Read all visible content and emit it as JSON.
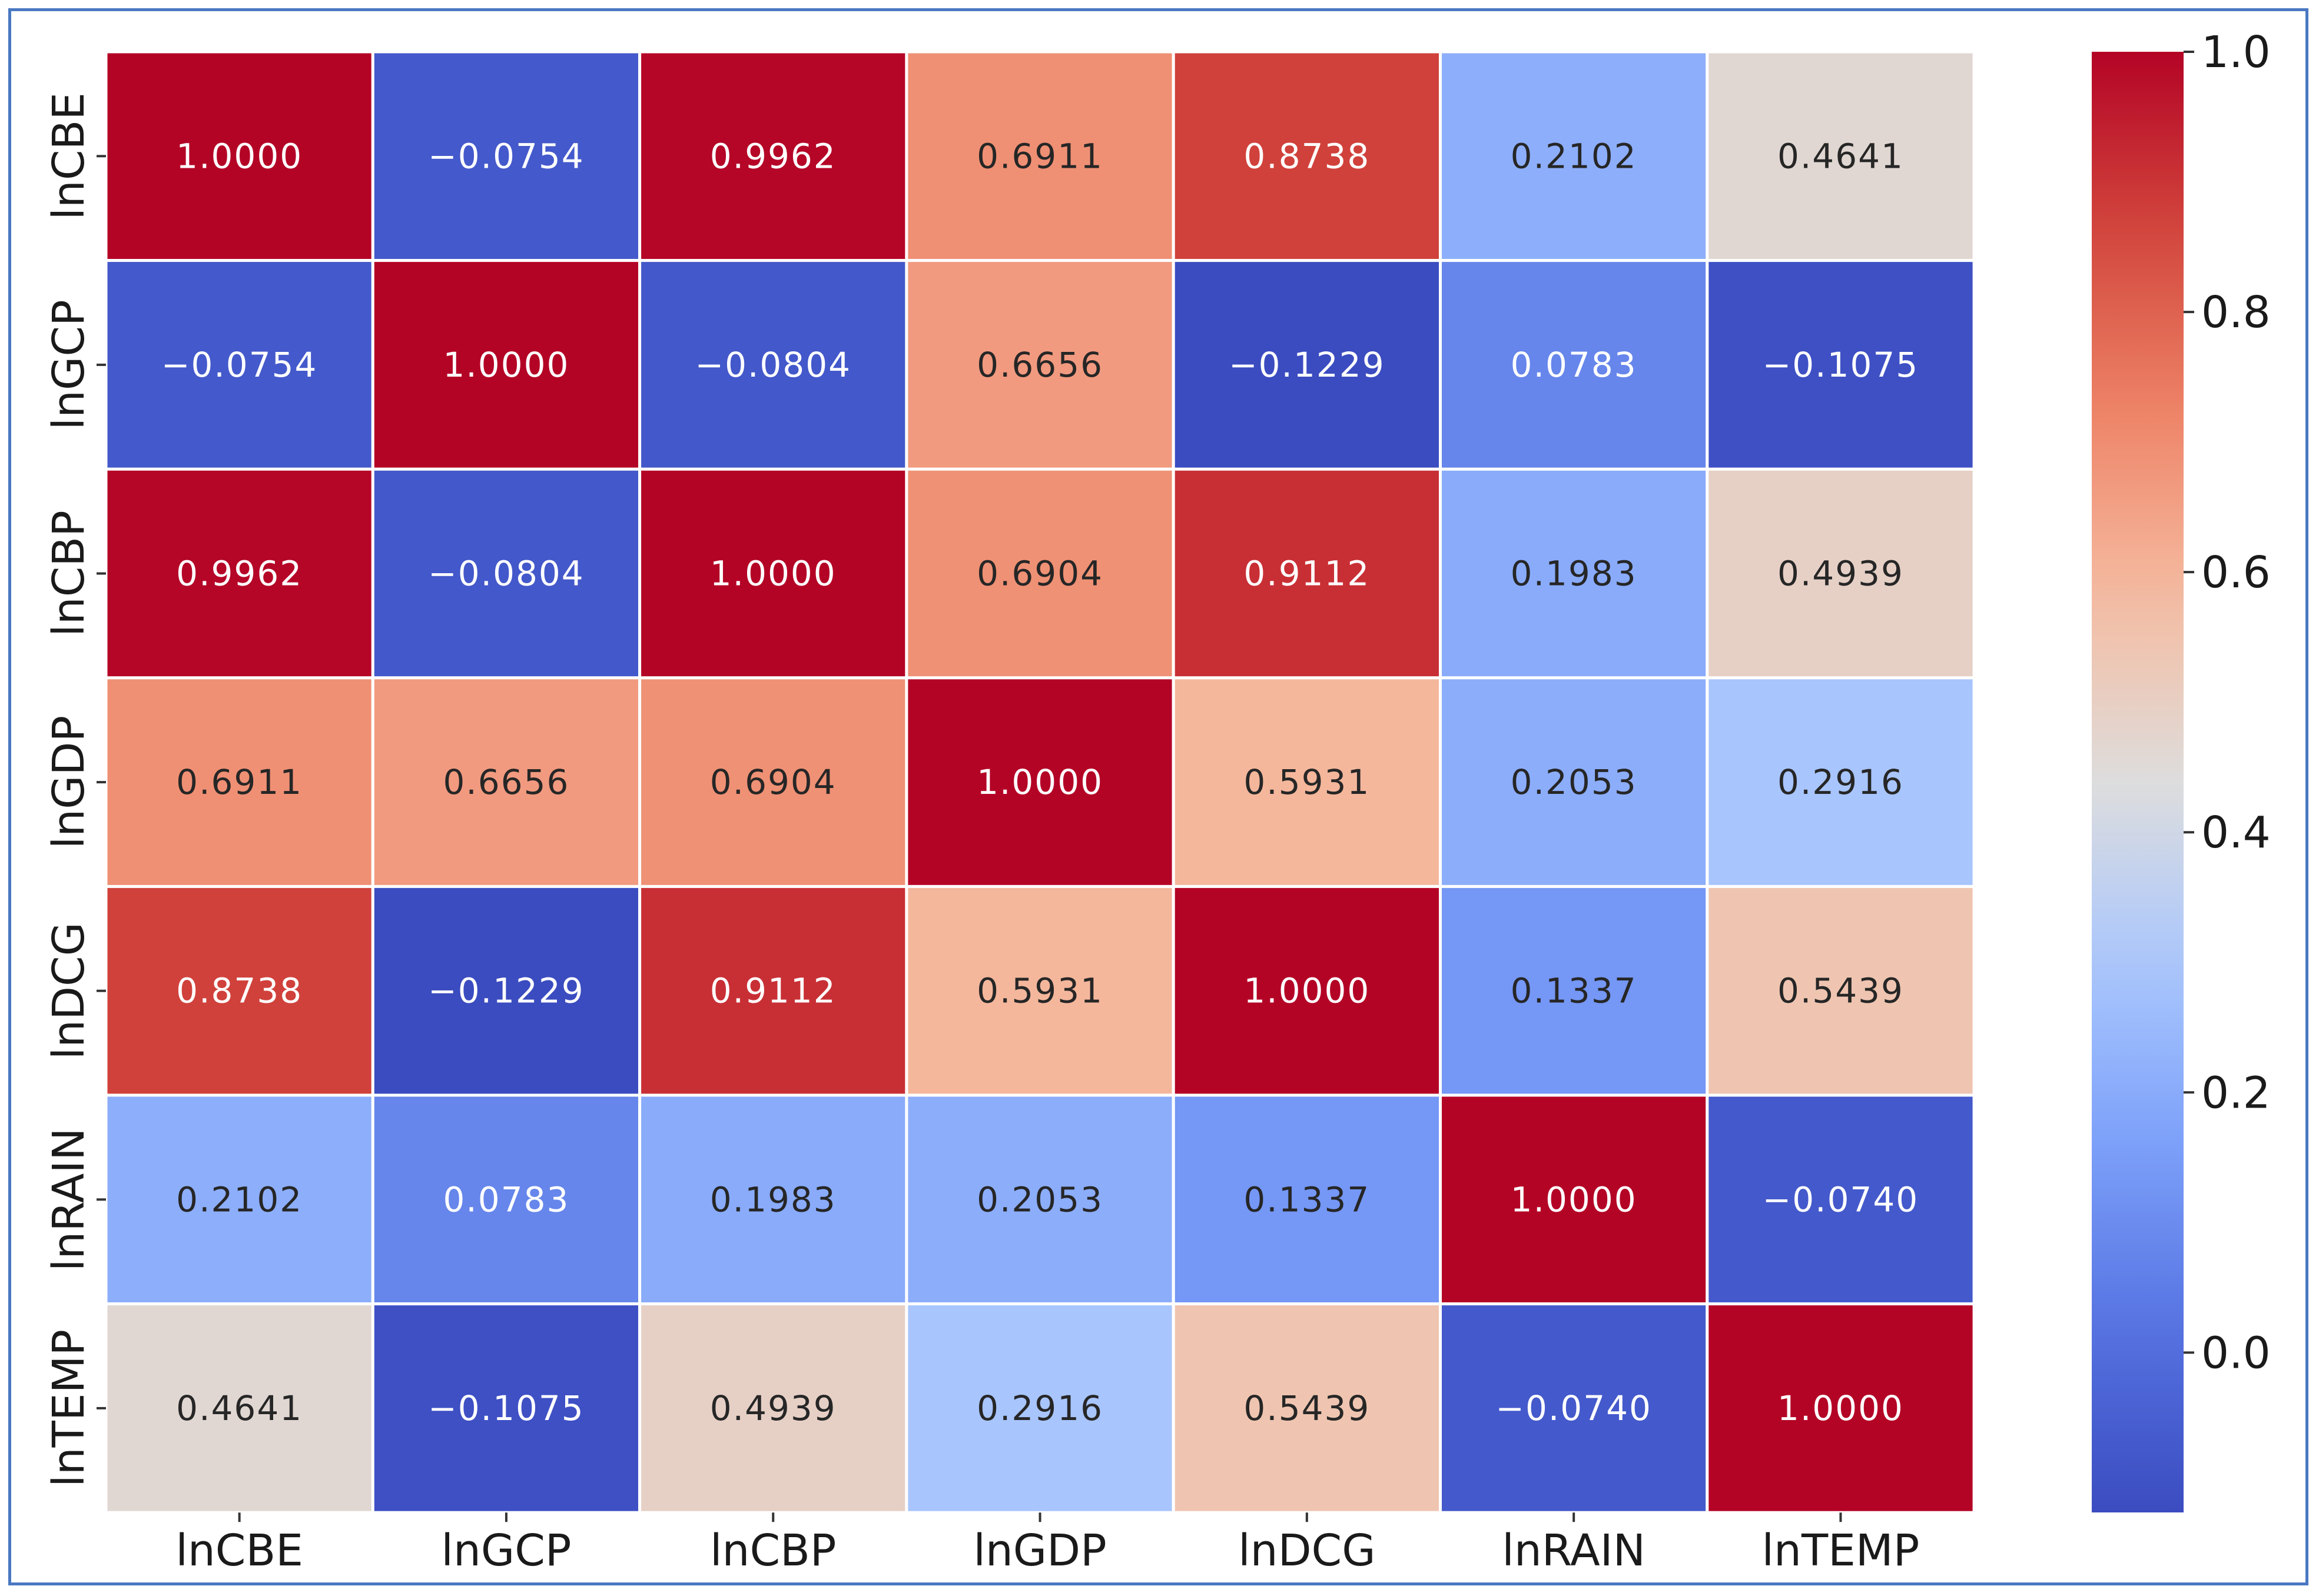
{
  "chart_data": {
    "type": "heatmap",
    "title": "",
    "xlabel": "",
    "ylabel": "",
    "x_categories": [
      "lnCBE",
      "lnGCP",
      "lnCBP",
      "lnGDP",
      "lnDCG",
      "lnRAIN",
      "lnTEMP"
    ],
    "y_categories": [
      "lnCBE",
      "lnGCP",
      "lnCBP",
      "lnGDP",
      "lnDCG",
      "lnRAIN",
      "lnTEMP"
    ],
    "values": [
      [
        1.0,
        -0.0754,
        0.9962,
        0.6911,
        0.8738,
        0.2102,
        0.4641
      ],
      [
        -0.0754,
        1.0,
        -0.0804,
        0.6656,
        -0.1229,
        0.0783,
        -0.1075
      ],
      [
        0.9962,
        -0.0804,
        1.0,
        0.6904,
        0.9112,
        0.1983,
        0.4939
      ],
      [
        0.6911,
        0.6656,
        0.6904,
        1.0,
        0.5931,
        0.2053,
        0.2916
      ],
      [
        0.8738,
        -0.1229,
        0.9112,
        0.5931,
        1.0,
        0.1337,
        0.5439
      ],
      [
        0.2102,
        0.0783,
        0.1983,
        0.2053,
        0.1337,
        1.0,
        -0.074
      ],
      [
        0.4641,
        -0.1075,
        0.4939,
        0.2916,
        0.5439,
        -0.074,
        1.0
      ]
    ],
    "value_labels": [
      [
        "1.0000",
        "−0.0754",
        "0.9962",
        "0.6911",
        "0.8738",
        "0.2102",
        "0.4641"
      ],
      [
        "−0.0754",
        "1.0000",
        "−0.0804",
        "0.6656",
        "−0.1229",
        "0.0783",
        "−0.1075"
      ],
      [
        "0.9962",
        "−0.0804",
        "1.0000",
        "0.6904",
        "0.9112",
        "0.1983",
        "0.4939"
      ],
      [
        "0.6911",
        "0.6656",
        "0.6904",
        "1.0000",
        "0.5931",
        "0.2053",
        "0.2916"
      ],
      [
        "0.8738",
        "−0.1229",
        "0.9112",
        "0.5931",
        "1.0000",
        "0.1337",
        "0.5439"
      ],
      [
        "0.2102",
        "0.0783",
        "0.1983",
        "0.2053",
        "0.1337",
        "1.0000",
        "−0.0740"
      ],
      [
        "0.4641",
        "−0.1075",
        "0.4939",
        "0.2916",
        "0.5439",
        "−0.0740",
        "1.0000"
      ]
    ],
    "colormap": "coolwarm",
    "vmin": -0.1229,
    "vmax": 1.0,
    "colorbar": {
      "ticks": [
        0.0,
        0.2,
        0.4,
        0.6,
        0.8,
        1.0
      ],
      "tick_labels": [
        "0.0",
        "0.2",
        "0.4",
        "0.6",
        "0.8",
        "1.0"
      ],
      "placement": "right"
    },
    "grid": false,
    "cell_border_color": "#ffffff",
    "frame_color": "#4a78c2",
    "dark_text_color": "#262626",
    "light_text_color": "#ffffff"
  }
}
